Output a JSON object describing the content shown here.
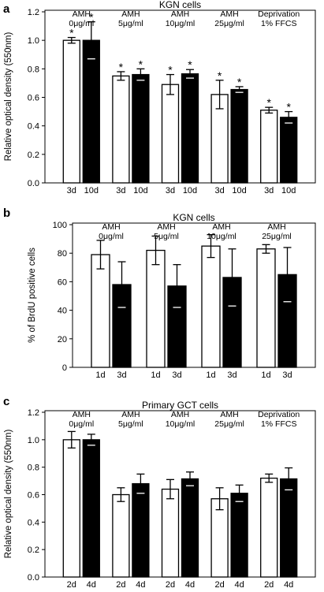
{
  "chart_data": [
    {
      "panel_label": "a",
      "type": "bar",
      "title": "KGN cells",
      "ylabel": "Relative optical density (550nm)",
      "ylim": [
        0,
        1.2
      ],
      "yticks": [
        "0.0",
        "0.2",
        "0.4",
        "0.6",
        "0.8",
        "1.0",
        "1.2"
      ],
      "tick_values": [
        0,
        0.2,
        0.4,
        0.6,
        0.8,
        1.0,
        1.2
      ],
      "group_labels": [
        [
          "AMH",
          "0μg/ml"
        ],
        [
          "AMH",
          "5μg/ml"
        ],
        [
          "AMH",
          "10μg/ml"
        ],
        [
          "AMH",
          "25μg/ml"
        ],
        [
          "Deprivation",
          "1% FFCS"
        ]
      ],
      "bar_labels": [
        "3d",
        "10d"
      ],
      "series": [
        {
          "name": "3d",
          "color": "#ffffff",
          "values": [
            1.0,
            0.75,
            0.69,
            0.62,
            0.51
          ],
          "errors": [
            0.02,
            0.03,
            0.07,
            0.1,
            0.02
          ]
        },
        {
          "name": "10d",
          "color": "#000000",
          "values": [
            1.0,
            0.76,
            0.765,
            0.655,
            0.46
          ],
          "errors": [
            0.13,
            0.04,
            0.03,
            0.02,
            0.04
          ]
        }
      ],
      "significance": [
        [
          "*",
          "*"
        ],
        [
          "*",
          "*"
        ],
        [
          "*",
          "*"
        ],
        [
          "*",
          "*"
        ],
        [
          "*",
          "*"
        ]
      ]
    },
    {
      "panel_label": "b",
      "type": "bar",
      "title": "KGN cells",
      "ylabel": "% of BrdU positive cells",
      "ylim": [
        0,
        100
      ],
      "yticks": [
        "0",
        "20",
        "40",
        "60",
        "80",
        "100"
      ],
      "tick_values": [
        0,
        20,
        40,
        60,
        80,
        100
      ],
      "group_labels": [
        [
          "AMH",
          "0μg/ml"
        ],
        [
          "AMH",
          "5μg/ml"
        ],
        [
          "AMH",
          "10μg/ml"
        ],
        [
          "AMH",
          "25μg/ml"
        ]
      ],
      "bar_labels": [
        "1d",
        "3d"
      ],
      "series": [
        {
          "name": "1d",
          "color": "#ffffff",
          "values": [
            79,
            82,
            85,
            83
          ],
          "errors": [
            10,
            10,
            8,
            3
          ]
        },
        {
          "name": "3d",
          "color": "#000000",
          "values": [
            58,
            57,
            63,
            65
          ],
          "errors": [
            16,
            15,
            20,
            19
          ]
        }
      ]
    },
    {
      "panel_label": "c",
      "type": "bar",
      "title": "Primary GCT cells",
      "ylabel": "Relative optical density (550nm)",
      "ylim": [
        0,
        1.2
      ],
      "yticks": [
        "0.0",
        "0.2",
        "0.4",
        "0.6",
        "0.8",
        "1.0",
        "1.2"
      ],
      "tick_values": [
        0,
        0.2,
        0.4,
        0.6,
        0.8,
        1.0,
        1.2
      ],
      "group_labels": [
        [
          "AMH",
          "0μg/ml"
        ],
        [
          "AMH",
          "5μg/ml"
        ],
        [
          "AMH",
          "10μg/ml"
        ],
        [
          "AMH",
          "25μg/ml"
        ],
        [
          "Deprivation",
          "1% FFCS"
        ]
      ],
      "bar_labels": [
        "2d",
        "4d"
      ],
      "series": [
        {
          "name": "2d",
          "color": "#ffffff",
          "values": [
            1.0,
            0.6,
            0.64,
            0.57,
            0.72
          ],
          "errors": [
            0.06,
            0.05,
            0.07,
            0.08,
            0.03
          ]
        },
        {
          "name": "4d",
          "color": "#000000",
          "values": [
            1.0,
            0.68,
            0.715,
            0.61,
            0.715
          ],
          "errors": [
            0.04,
            0.07,
            0.05,
            0.06,
            0.08
          ]
        }
      ]
    }
  ]
}
